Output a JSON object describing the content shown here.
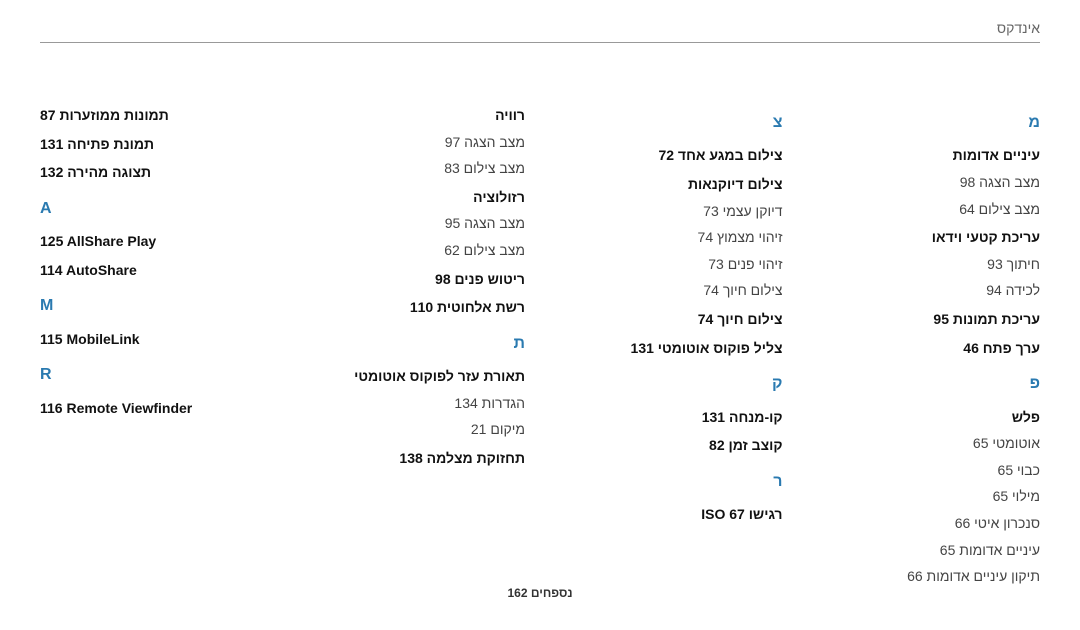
{
  "header": {
    "title": "אינדקס"
  },
  "footer": {
    "text": "נספחים  162"
  },
  "columns": [
    {
      "sections": [
        {
          "letter": "מ",
          "entries": [
            {
              "text": "עיניים אדומות",
              "bold": true
            },
            {
              "text": "מצב הצגה  98"
            },
            {
              "text": "מצב צילום  64"
            },
            {
              "text": "עריכת קטעי וידאו",
              "bold": true
            },
            {
              "text": "חיתוך  93"
            },
            {
              "text": "לכידה  94"
            },
            {
              "text": "עריכת תמונות  95",
              "bold": true
            },
            {
              "text": "ערך פתח  46",
              "bold": true
            }
          ]
        },
        {
          "letter": "פ",
          "entries": [
            {
              "text": "פלש",
              "bold": true
            },
            {
              "text": "אוטומטי  65"
            },
            {
              "text": "כבוי  65"
            },
            {
              "text": "מילוי  65"
            },
            {
              "text": "סנכרון איטי  66"
            },
            {
              "text": "עיניים אדומות  65"
            },
            {
              "text": "תיקון עיניים אדומות  66"
            }
          ]
        }
      ]
    },
    {
      "sections": [
        {
          "letter": "צ",
          "entries": [
            {
              "text": "צילום במגע אחד  72",
              "bold": true
            },
            {
              "text": "צילום דיוקנאות",
              "bold": true
            },
            {
              "text": "דיוקן עצמי  73"
            },
            {
              "text": "זיהוי מצמוץ  74"
            },
            {
              "text": "זיהוי פנים  73"
            },
            {
              "text": "צילום חיוך  74"
            },
            {
              "text": "צילום חיוך  74",
              "bold": true
            },
            {
              "text": "צליל פוקוס אוטומטי  131",
              "bold": true
            }
          ]
        },
        {
          "letter": "ק",
          "entries": [
            {
              "text": "קו-מנחה  131",
              "bold": true
            },
            {
              "text": "קוצב זמן  82",
              "bold": true
            }
          ]
        },
        {
          "letter": "ר",
          "entries": [
            {
              "text": "רגישו ISO  67",
              "bold": true
            }
          ]
        }
      ]
    },
    {
      "sections": [
        {
          "letter": "",
          "entries": [
            {
              "text": "רוויה",
              "bold": true
            },
            {
              "text": "מצב הצגה  97"
            },
            {
              "text": "מצב צילום  83"
            },
            {
              "text": "רזולוציה",
              "bold": true
            },
            {
              "text": "מצב הצגה  95"
            },
            {
              "text": "מצב צילום  62"
            },
            {
              "text": "ריטוש פנים  98",
              "bold": true
            },
            {
              "text": "רשת אלחוטית  110",
              "bold": true
            }
          ]
        },
        {
          "letter": "ת",
          "entries": [
            {
              "text": "תאורת עזר לפוקוס אוטומטי",
              "bold": true
            },
            {
              "text": "הגדרות  134"
            },
            {
              "text": "מיקום  21"
            },
            {
              "text": "תחזוקת מצלמה  138",
              "bold": true
            }
          ]
        }
      ]
    },
    {
      "ltr": true,
      "sections": [
        {
          "letter": "",
          "entries": [
            {
              "text": "תמונות ממוזערות  87",
              "bold": true
            },
            {
              "text": "תמונת פתיחה  131",
              "bold": true
            },
            {
              "text": "תצוגה מהירה  132",
              "bold": true
            }
          ]
        },
        {
          "letter": "A",
          "entries": [
            {
              "text": "125  AllShare Play",
              "bold": true
            },
            {
              "text": "114  AutoShare",
              "bold": true
            }
          ]
        },
        {
          "letter": "M",
          "entries": [
            {
              "text": "115  MobileLink",
              "bold": true
            }
          ]
        },
        {
          "letter": "R",
          "entries": [
            {
              "text": "116  Remote Viewfinder",
              "bold": true
            }
          ]
        }
      ]
    }
  ]
}
